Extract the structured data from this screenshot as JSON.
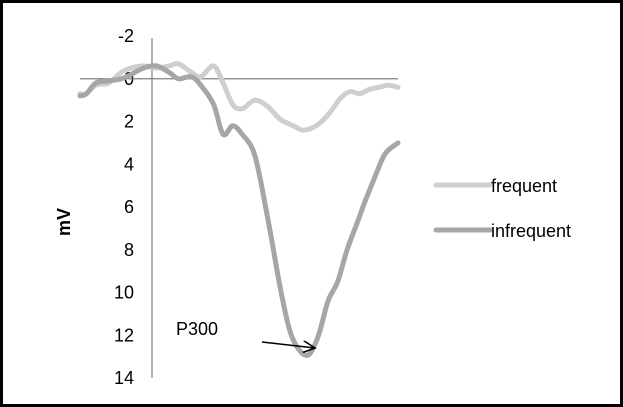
{
  "chart_data": {
    "type": "line",
    "title": "",
    "xlabel": "",
    "ylabel": "mV",
    "ylim": [
      -2,
      14
    ],
    "y_inverted": true,
    "y_ticks": [
      "-2",
      "0",
      "2",
      "4",
      "6",
      "8",
      "10",
      "12",
      "14"
    ],
    "x_range": [
      0,
      100
    ],
    "grid": false,
    "legend_position": "right",
    "series": [
      {
        "name": "frequent",
        "color": "#cfcfcf",
        "x": [
          0,
          2,
          5,
          9,
          13,
          16,
          20,
          24,
          28,
          31,
          35,
          38,
          42,
          45,
          48,
          51,
          55,
          59,
          63,
          67,
          70,
          73,
          76,
          79,
          82,
          85,
          88,
          91,
          94,
          97,
          100
        ],
        "y": [
          0.7,
          0.7,
          0.3,
          0.2,
          -0.3,
          -0.5,
          -0.6,
          -0.5,
          -0.6,
          -0.7,
          -0.3,
          -0.1,
          -0.6,
          0.2,
          1.2,
          1.4,
          1.0,
          1.3,
          1.9,
          2.2,
          2.4,
          2.3,
          2.0,
          1.5,
          0.9,
          0.6,
          0.7,
          0.5,
          0.4,
          0.3,
          0.4
        ]
      },
      {
        "name": "infrequent",
        "color": "#a6a6a6",
        "x": [
          0,
          2,
          5,
          9,
          13,
          16,
          20,
          24,
          28,
          31,
          35,
          38,
          42,
          45,
          48,
          51,
          55,
          59,
          63,
          66,
          69,
          72,
          75,
          78,
          81,
          84,
          87,
          90,
          93,
          96,
          100
        ],
        "y": [
          0.8,
          0.7,
          0.2,
          0.1,
          0.0,
          -0.2,
          -0.5,
          -0.6,
          -0.3,
          0.0,
          -0.1,
          0.3,
          1.2,
          2.6,
          2.2,
          2.6,
          3.6,
          6.5,
          9.8,
          11.8,
          12.7,
          12.9,
          12.0,
          10.4,
          9.5,
          8.0,
          6.8,
          5.6,
          4.5,
          3.5,
          3.0
        ]
      }
    ],
    "annotations": [
      {
        "text": "P300",
        "points_to": {
          "x": 69,
          "y": 12.7
        }
      }
    ]
  }
}
